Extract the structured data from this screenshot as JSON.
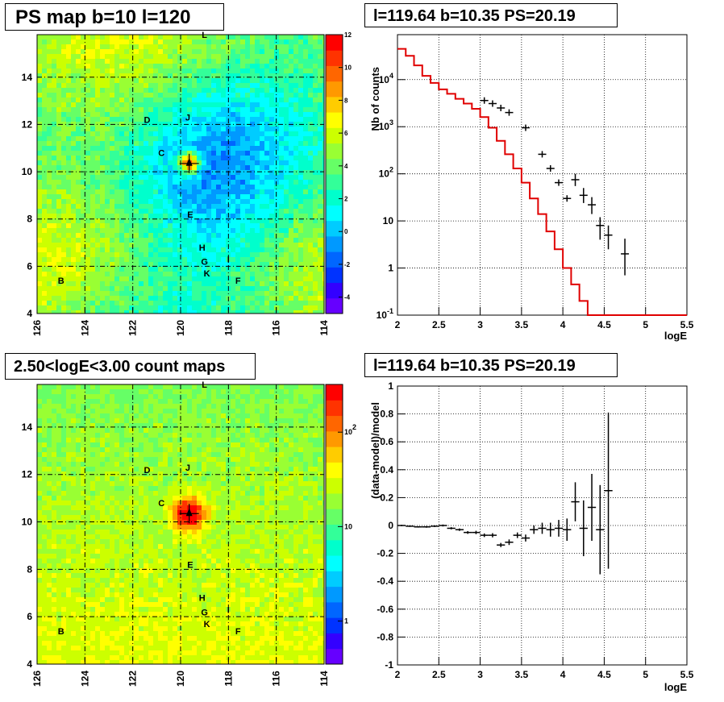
{
  "panels": {
    "top_left_title": "PS map b=10 l=120",
    "top_right_title": "l=119.64 b=10.35 PS=20.19",
    "bottom_left_title": "2.50<logE<3.00 count maps",
    "bottom_right_title": "l=119.64 b=10.35 PS=20.19"
  },
  "chart_data": [
    {
      "type": "heatmap",
      "title": "PS map b=10 l=120",
      "x_ticks": [
        "126",
        "124",
        "122",
        "120",
        "118",
        "116",
        "114"
      ],
      "xlim": [
        126,
        114
      ],
      "y_ticks": [
        "4",
        "6",
        "8",
        "10",
        "12",
        "14"
      ],
      "ylim": [
        4,
        15.8
      ],
      "colorbar": {
        "ticks": [
          "12",
          "10",
          "8",
          "6",
          "4",
          "2",
          "0",
          "-2",
          "-4"
        ],
        "range": [
          -5,
          12
        ],
        "scale": "linear"
      },
      "hotspot": {
        "l": 119.64,
        "b": 10.35
      },
      "sources": [
        {
          "label": "L",
          "l": 119.0,
          "b": 15.8
        },
        {
          "label": "D",
          "l": 121.4,
          "b": 12.2
        },
        {
          "label": "J",
          "l": 119.7,
          "b": 12.3
        },
        {
          "label": "C",
          "l": 120.8,
          "b": 10.8
        },
        {
          "label": "E",
          "l": 119.6,
          "b": 8.2
        },
        {
          "label": "H",
          "l": 119.1,
          "b": 6.8
        },
        {
          "label": "G",
          "l": 119.0,
          "b": 6.2
        },
        {
          "label": "I",
          "l": 118.0,
          "b": 6.3
        },
        {
          "label": "K",
          "l": 118.9,
          "b": 5.7
        },
        {
          "label": "F",
          "l": 117.6,
          "b": 5.4
        },
        {
          "label": "B",
          "l": 125.0,
          "b": 5.4
        }
      ]
    },
    {
      "type": "line",
      "title": "l=119.64 b=10.35 PS=20.19",
      "xlabel": "logE",
      "ylabel": "Nb of counts",
      "y_scale": "log",
      "xlim": [
        2,
        5.5
      ],
      "ylim": [
        0.1,
        90000
      ],
      "x_ticks": [
        "2",
        "2.5",
        "3",
        "3.5",
        "4",
        "4.5",
        "5",
        "5.5"
      ],
      "y_ticks": [
        "10^-1",
        "1",
        "10",
        "10^2",
        "10^3",
        "10^4"
      ],
      "series": [
        {
          "style": "step",
          "color": "#e00000",
          "bins_start": 2.0,
          "bin_width": 0.1,
          "values": [
            45000,
            32000,
            20000,
            12000,
            8500,
            6200,
            5000,
            3900,
            3100,
            2400,
            1600,
            950,
            500,
            260,
            130,
            65,
            30,
            14,
            6,
            2.5,
            1,
            0.45,
            0.2,
            0.1,
            0.1,
            0.1,
            0.1,
            0.1,
            0.1,
            0.1,
            0.1,
            0.1,
            0.1,
            0.1,
            0.1
          ]
        },
        {
          "style": "error_points",
          "color": "#000000",
          "points": [
            {
              "x": 3.05,
              "y": 3600
            },
            {
              "x": 3.15,
              "y": 3100
            },
            {
              "x": 3.25,
              "y": 2500
            },
            {
              "x": 3.35,
              "y": 2000
            },
            {
              "x": 3.55,
              "y": 950
            },
            {
              "x": 3.75,
              "y": 260
            },
            {
              "x": 3.85,
              "y": 130
            },
            {
              "x": 3.95,
              "y": 65
            },
            {
              "x": 4.05,
              "y": 30
            },
            {
              "x": 4.15,
              "y": 75,
              "err_lo": 55,
              "err_hi": 100
            },
            {
              "x": 4.25,
              "y": 35,
              "err_lo": 24,
              "err_hi": 50
            },
            {
              "x": 4.35,
              "y": 22,
              "err_lo": 14,
              "err_hi": 32
            },
            {
              "x": 4.45,
              "y": 8,
              "err_lo": 4,
              "err_hi": 12
            },
            {
              "x": 4.55,
              "y": 5,
              "err_lo": 2.5,
              "err_hi": 8
            },
            {
              "x": 4.75,
              "y": 2,
              "err_lo": 0.7,
              "err_hi": 4.2
            }
          ]
        }
      ]
    },
    {
      "type": "heatmap",
      "title": "2.50<logE<3.00 count maps",
      "x_ticks": [
        "126",
        "124",
        "122",
        "120",
        "118",
        "116",
        "114"
      ],
      "xlim": [
        126,
        114
      ],
      "y_ticks": [
        "4",
        "6",
        "8",
        "10",
        "12",
        "14"
      ],
      "ylim": [
        4,
        15.8
      ],
      "colorbar": {
        "ticks": [
          "10^2",
          "10",
          "1"
        ],
        "scale": "log"
      },
      "hotspot": {
        "l": 119.64,
        "b": 10.35
      },
      "sources": [
        {
          "label": "L",
          "l": 119.0,
          "b": 15.8
        },
        {
          "label": "D",
          "l": 121.4,
          "b": 12.2
        },
        {
          "label": "J",
          "l": 119.7,
          "b": 12.3
        },
        {
          "label": "C",
          "l": 120.8,
          "b": 10.8
        },
        {
          "label": "E",
          "l": 119.6,
          "b": 8.2
        },
        {
          "label": "H",
          "l": 119.1,
          "b": 6.8
        },
        {
          "label": "G",
          "l": 119.0,
          "b": 6.2
        },
        {
          "label": "I",
          "l": 118.0,
          "b": 6.3
        },
        {
          "label": "K",
          "l": 118.9,
          "b": 5.7
        },
        {
          "label": "F",
          "l": 117.6,
          "b": 5.4
        },
        {
          "label": "B",
          "l": 125.0,
          "b": 5.4
        }
      ]
    },
    {
      "type": "scatter",
      "title": "l=119.64 b=10.35 PS=20.19",
      "xlabel": "logE",
      "ylabel": "(data-model)/model",
      "xlim": [
        2,
        5.5
      ],
      "ylim": [
        -1,
        1
      ],
      "x_ticks": [
        "2",
        "2.5",
        "3",
        "3.5",
        "4",
        "4.5",
        "5",
        "5.5"
      ],
      "y_ticks": [
        "-1",
        "-0.8",
        "-0.6",
        "-0.4",
        "-0.2",
        "0",
        "0.2",
        "0.4",
        "0.6",
        "0.8",
        "1"
      ],
      "points": [
        {
          "x": 2.05,
          "y": 0.0,
          "err": 0.005
        },
        {
          "x": 2.15,
          "y": -0.005,
          "err": 0.005
        },
        {
          "x": 2.25,
          "y": -0.01,
          "err": 0.005
        },
        {
          "x": 2.35,
          "y": -0.01,
          "err": 0.006
        },
        {
          "x": 2.45,
          "y": -0.005,
          "err": 0.006
        },
        {
          "x": 2.55,
          "y": 0.0,
          "err": 0.007
        },
        {
          "x": 2.65,
          "y": -0.02,
          "err": 0.008
        },
        {
          "x": 2.75,
          "y": -0.03,
          "err": 0.009
        },
        {
          "x": 2.85,
          "y": -0.05,
          "err": 0.01
        },
        {
          "x": 2.95,
          "y": -0.05,
          "err": 0.012
        },
        {
          "x": 3.05,
          "y": -0.07,
          "err": 0.013
        },
        {
          "x": 3.15,
          "y": -0.07,
          "err": 0.015
        },
        {
          "x": 3.25,
          "y": -0.14,
          "err": 0.015
        },
        {
          "x": 3.35,
          "y": -0.12,
          "err": 0.02
        },
        {
          "x": 3.45,
          "y": -0.07,
          "err": 0.02
        },
        {
          "x": 3.55,
          "y": -0.09,
          "err": 0.025
        },
        {
          "x": 3.65,
          "y": -0.03,
          "err": 0.03
        },
        {
          "x": 3.75,
          "y": -0.02,
          "err": 0.04
        },
        {
          "x": 3.85,
          "y": -0.03,
          "err": 0.05
        },
        {
          "x": 3.95,
          "y": -0.02,
          "err": 0.06
        },
        {
          "x": 4.05,
          "y": -0.03,
          "err": 0.08
        },
        {
          "x": 4.15,
          "y": 0.17,
          "err": 0.14
        },
        {
          "x": 4.25,
          "y": -0.02,
          "err": 0.2
        },
        {
          "x": 4.35,
          "y": 0.13,
          "err": 0.24
        },
        {
          "x": 4.45,
          "y": -0.03,
          "err": 0.32
        },
        {
          "x": 4.55,
          "y": 0.25,
          "err": 0.56
        }
      ]
    }
  ]
}
